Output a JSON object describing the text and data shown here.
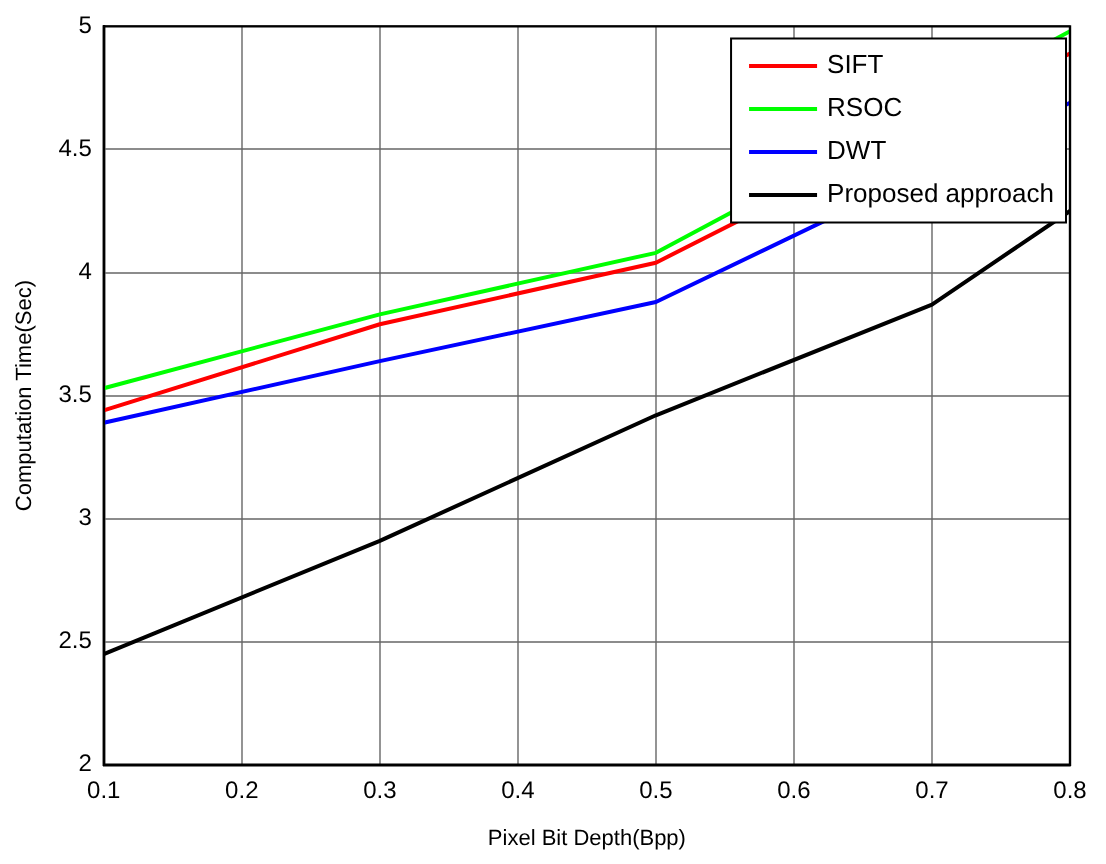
{
  "chart_data": {
    "type": "line",
    "xlabel": "Pixel Bit Depth(Bpp)",
    "ylabel": "Computation Time(Sec)",
    "x": [
      0.1,
      0.3,
      0.5,
      0.7,
      0.8
    ],
    "series": [
      {
        "name": "SIFT",
        "color": "#ff0000",
        "values": [
          3.44,
          3.79,
          4.04,
          null,
          4.89
        ]
      },
      {
        "name": "RSOC",
        "color": "#00ff00",
        "values": [
          3.53,
          3.83,
          4.08,
          null,
          4.98
        ]
      },
      {
        "name": "DWT",
        "color": "#0000ff",
        "values": [
          3.39,
          3.64,
          3.88,
          null,
          4.69
        ]
      },
      {
        "name": "Proposed approach",
        "color": "#000000",
        "values": [
          2.45,
          2.91,
          3.42,
          3.87,
          4.25
        ]
      }
    ],
    "xlim": [
      0.1,
      0.8
    ],
    "xticks": [
      0.1,
      0.2,
      0.3,
      0.4,
      0.5,
      0.6,
      0.7,
      0.8
    ],
    "ylim": [
      2,
      5
    ],
    "yticks": [
      2,
      2.5,
      3,
      3.5,
      4,
      4.5,
      5
    ],
    "grid": true,
    "legend": "top right",
    "marker": "none",
    "line_style": "solid"
  }
}
